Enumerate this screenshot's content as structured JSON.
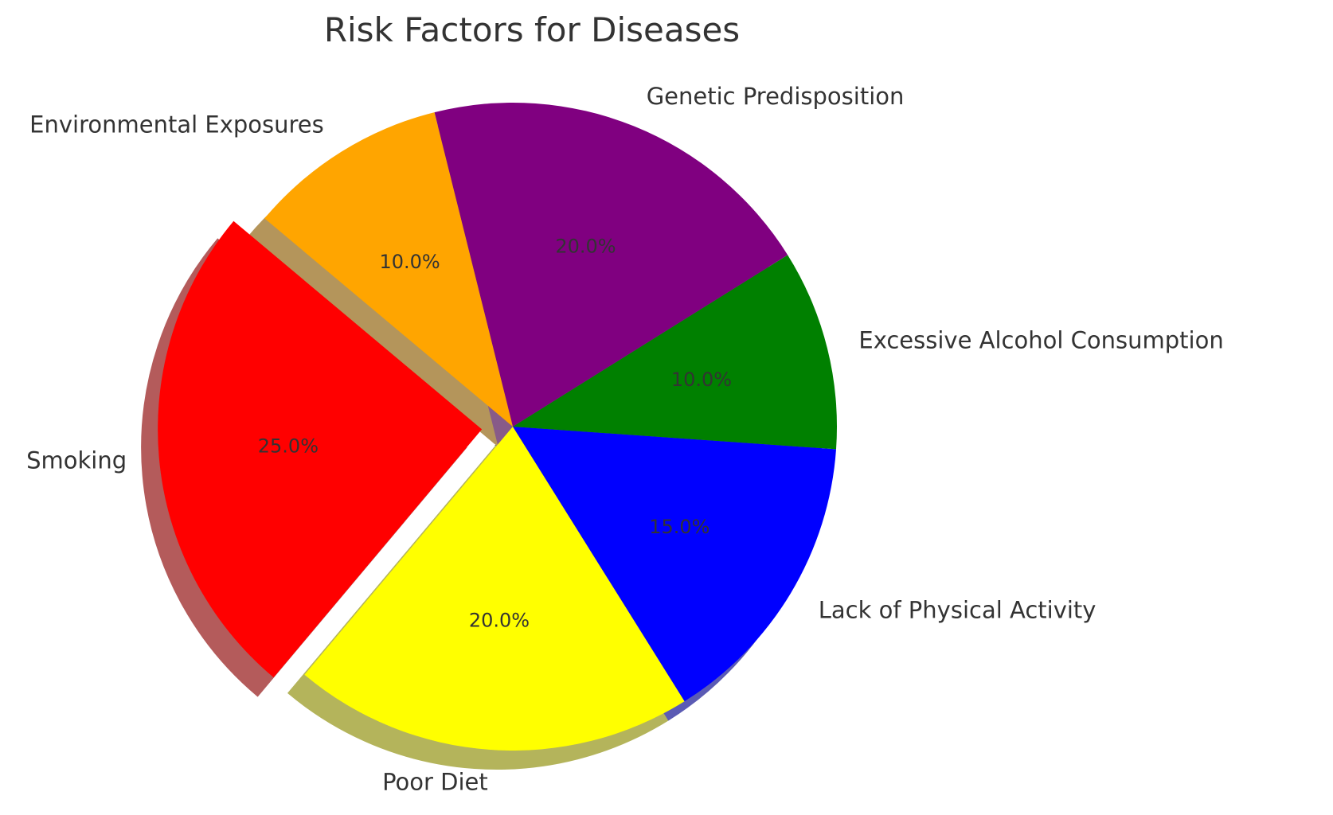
{
  "chart_data": {
    "type": "pie",
    "title": "Risk Factors for Diseases",
    "slices": [
      {
        "label": "Smoking",
        "value": 25,
        "display": "25.0%",
        "color": "#ff0000",
        "explode": true
      },
      {
        "label": "Poor Diet",
        "value": 20,
        "display": "20.0%",
        "color": "#ffff00"
      },
      {
        "label": "Lack of Physical Activity",
        "value": 15,
        "display": "15.0%",
        "color": "#0000ff"
      },
      {
        "label": "Excessive Alcohol Consumption",
        "value": 10,
        "display": "10.0%",
        "color": "#008000"
      },
      {
        "label": "Genetic Predisposition",
        "value": 20,
        "display": "20.0%",
        "color": "#800080"
      },
      {
        "label": "Environmental Exposures",
        "value": 10,
        "display": "10.0%",
        "color": "#ffa500"
      }
    ],
    "start_angle_deg": 140,
    "direction": "counterclockwise",
    "shadow": true,
    "legend": "none"
  }
}
